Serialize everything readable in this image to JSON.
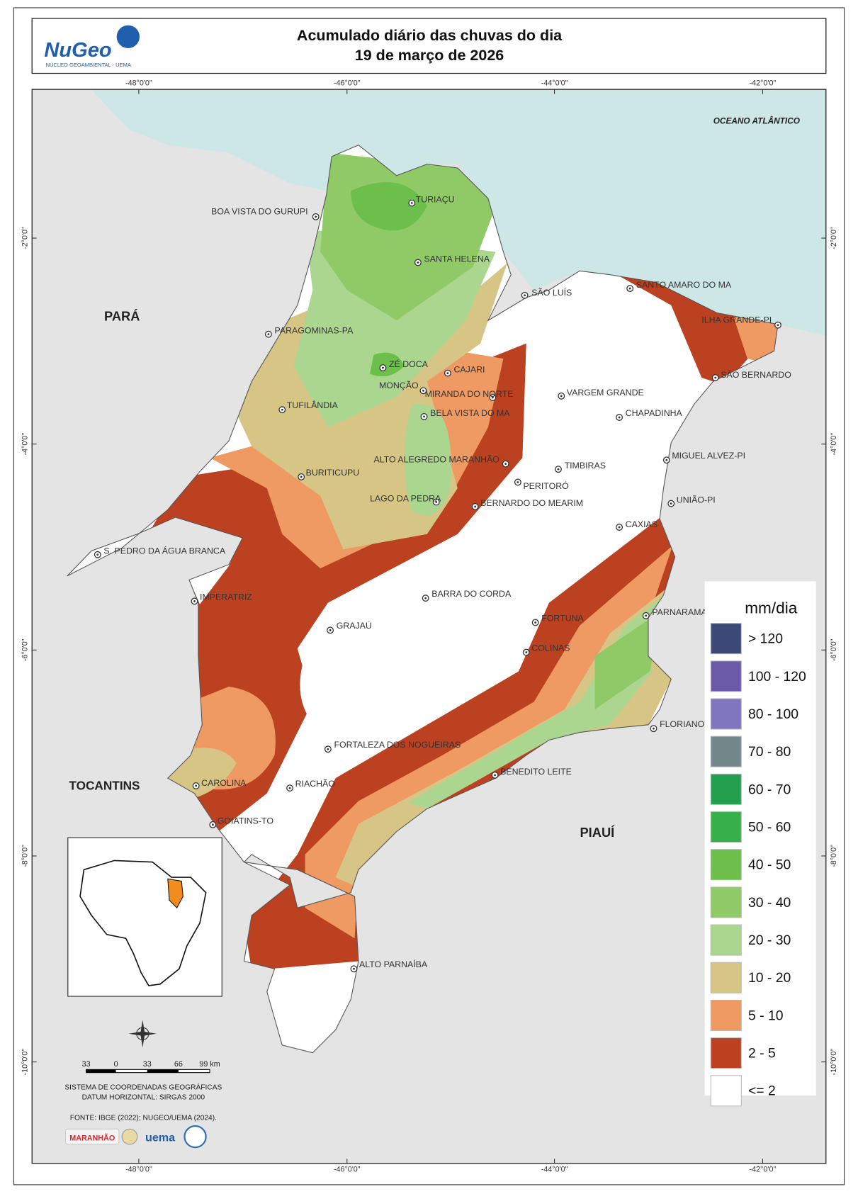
{
  "header": {
    "logo": "NuGeo",
    "logo_subtitle": "NÚCLEO GEOAMBIENTAL - UEMA",
    "title_lines": [
      "Acumulado diário das chuvas do dia",
      "19 de março de 2026"
    ]
  },
  "graticule": {
    "longitudes": [
      "-48°0'0\"",
      "-46°0'0\"",
      "-44°0'0\"",
      "-42°0'0\""
    ],
    "latitudes": [
      "-2°0'0\"",
      "-4°0'0\"",
      "-6°0'0\"",
      "-8°0'0\"",
      "-10°0'0\""
    ]
  },
  "regions": {
    "para": "PARÁ",
    "tocantins": "TOCANTINS",
    "piaui": "PIAUÍ",
    "ocean": "OCEANO ATLÂNTICO"
  },
  "cities": [
    "TURIAÇU",
    "BOA VISTA DO GURUPI",
    "SANTA HELENA",
    "SÃO LUÍS",
    "SANTO AMARO DO MA",
    "ILHA GRANDE-PI",
    "PARAGOMINAS-PA",
    "ZÉ DOCA",
    "CAJARI",
    "MONÇÃO",
    "SÃO BERNARDO",
    "MIRANDA DO NORTE",
    "VARGEM GRANDE",
    "TUFILÂNDIA",
    "BELA VISTA DO MA",
    "CHAPADINHA",
    "ALTO ALEGREDO MARANHÃO",
    "MIGUEL ALVEZ-PI",
    "TIMBIRAS",
    "BURITICUPU",
    "PERITORÓ",
    "LAGO DA PEDRA",
    "BERNARDO DO MEARIM",
    "UNIÃO-PI",
    "CAXIAS",
    "S. PEDRO DA ÁGUA BRANCA",
    "IMPERATRIZ",
    "BARRA DO CORDA",
    "PARNARAMA",
    "FORTUNA",
    "GRAJAÚ",
    "COLINAS",
    "FLORIANO-PI",
    "FORTALEZA DOS NOGUEIRAS",
    "BENEDITO LEITE",
    "CAROLINA",
    "RIACHÃO",
    "GOIATINS-TO",
    "ALTO PARNAÍBA"
  ],
  "legend": {
    "title": "mm/dia",
    "classes": [
      {
        "label": "> 120",
        "color": "#3b4a78"
      },
      {
        "label": "100 - 120",
        "color": "#6a5aa8"
      },
      {
        "label": "80 - 100",
        "color": "#8076bf"
      },
      {
        "label": "70 - 80",
        "color": "#72888a"
      },
      {
        "label": "60 - 70",
        "color": "#22a050"
      },
      {
        "label": "50 - 60",
        "color": "#35b04a"
      },
      {
        "label": "40 - 50",
        "color": "#6cbf4a"
      },
      {
        "label": "30 - 40",
        "color": "#8fca66"
      },
      {
        "label": "20 - 30",
        "color": "#aad68f"
      },
      {
        "label": "10 - 20",
        "color": "#d6c585"
      },
      {
        "label": "5 - 10",
        "color": "#ef9a62"
      },
      {
        "label": "2 - 5",
        "color": "#bb4120"
      },
      {
        "label": "<= 2",
        "color": "#ffffff"
      }
    ]
  },
  "scale_bar": {
    "labels": [
      "33",
      "0",
      "33",
      "66",
      "99 km"
    ]
  },
  "footer": {
    "coordinate_system": "SISTEMA DE COORDENADAS GEOGRÁFICAS",
    "datum": "DATUM HORIZONTAL: SIRGAS 2000",
    "source": "FONTE: IBGE (2022); NUGEO/UEMA (2024).",
    "logos": [
      "MARANHÃO",
      "uema"
    ]
  }
}
